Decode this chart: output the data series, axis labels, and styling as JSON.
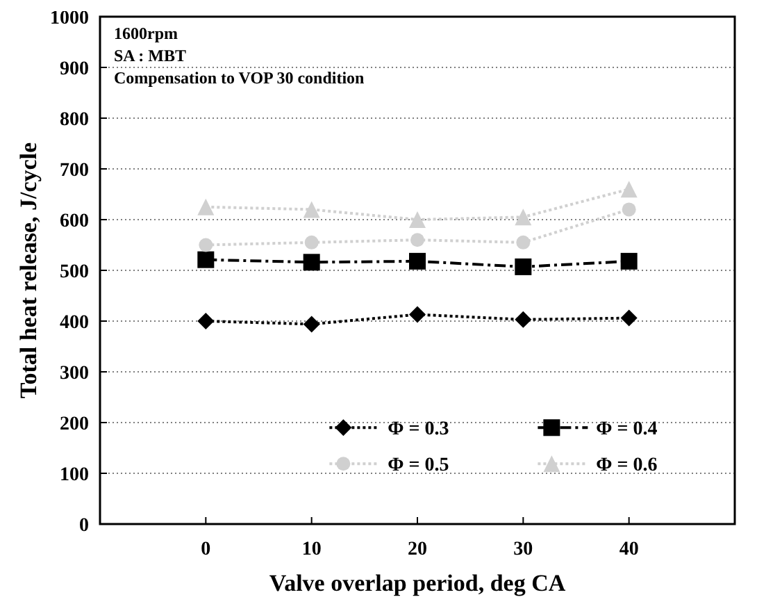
{
  "chart_data": {
    "type": "line",
    "xlabel": "Valve overlap period, deg CA",
    "ylabel": "Total heat release, J/cycle",
    "annotations": [
      "1600rpm",
      "SA : MBT",
      "Compensation to VOP 30 condition"
    ],
    "x": [
      0,
      10,
      20,
      30,
      40
    ],
    "series": [
      {
        "name": "Φ = 0.3",
        "color": "#000000",
        "marker": "diamond",
        "line_style": "dotted",
        "values": [
          400,
          394,
          413,
          403,
          406
        ]
      },
      {
        "name": "Φ = 0.4",
        "color": "#000000",
        "marker": "square",
        "line_style": "dashed",
        "values": [
          521,
          516,
          518,
          507,
          518
        ]
      },
      {
        "name": "Φ = 0.5",
        "color": "#d0d0d0",
        "marker": "circle",
        "line_style": "dotted",
        "values": [
          550,
          555,
          560,
          555,
          620
        ]
      },
      {
        "name": "Φ = 0.6",
        "color": "#d0d0d0",
        "marker": "triangle",
        "line_style": "dotted",
        "values": [
          625,
          620,
          600,
          605,
          660
        ]
      }
    ],
    "xlim": [
      -10,
      50
    ],
    "xticks": [
      0,
      10,
      20,
      30,
      40
    ],
    "ylim": [
      0,
      1000
    ],
    "yticks": [
      0,
      100,
      200,
      300,
      400,
      500,
      600,
      700,
      800,
      900,
      1000
    ],
    "grid": "y",
    "legend": "bottom right"
  }
}
